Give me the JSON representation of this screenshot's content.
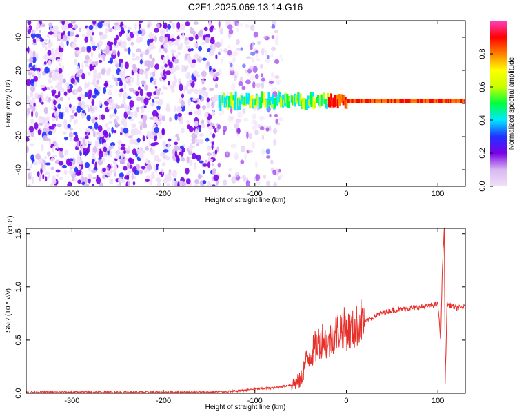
{
  "figure": {
    "title": "C2E1.2025.069.13.14.G16"
  },
  "chart_data": [
    {
      "type": "heatmap",
      "title": "C2E1.2025.069.13.14.G16",
      "xlabel": "Height of straight line (km)",
      "ylabel": "Frequency (Hz)",
      "xlim": [
        -350,
        130
      ],
      "ylim": [
        -50,
        50
      ],
      "x_ticks": [
        -300,
        -200,
        -100,
        0,
        100
      ],
      "y_ticks": [
        -40,
        -20,
        0,
        20,
        40
      ],
      "colorbar": {
        "label": "Normalized spectral amplitude",
        "range": [
          0,
          1
        ],
        "ticks": [
          "0.0",
          "0.2",
          "0.4",
          "0.6",
          "0.8"
        ],
        "colors": [
          "#f0e0f8",
          "#d8b8f0",
          "#7a00e8",
          "#2030ff",
          "#00e8ff",
          "#00ff40",
          "#c8ff00",
          "#ffff00",
          "#ff8000",
          "#ff0000",
          "#ff40c0"
        ]
      },
      "features": {
        "noise_region_x": [
          -350,
          -70
        ],
        "signal_band_x": [
          -140,
          130
        ],
        "signal_center_hz": 1.5
      }
    },
    {
      "type": "line",
      "xlabel": "Height of straight line (km)",
      "ylabel": "SNR (10 * v/v)",
      "y_exponent_label": "(x10⁴)",
      "xlim": [
        -350,
        130
      ],
      "ylim": [
        0,
        1.55
      ],
      "x_ticks": [
        -300,
        -200,
        -100,
        0,
        100
      ],
      "y_ticks": [
        "0.0",
        "0.5",
        "1.0",
        "1.5"
      ],
      "series": [
        {
          "color": "#e8302a",
          "x": [
            -350,
            -300,
            -250,
            -200,
            -150,
            -120,
            -100,
            -80,
            -60,
            -50,
            -45,
            -40,
            -35,
            -30,
            -25,
            -20,
            -15,
            -10,
            -5,
            0,
            5,
            10,
            15,
            20,
            30,
            40,
            50,
            60,
            70,
            80,
            90,
            95,
            100,
            103,
            105,
            107,
            108,
            110,
            115,
            120,
            130
          ],
          "y": [
            0.01,
            0.01,
            0.01,
            0.01,
            0.01,
            0.02,
            0.04,
            0.05,
            0.08,
            0.12,
            0.28,
            0.36,
            0.42,
            0.48,
            0.52,
            0.44,
            0.55,
            0.58,
            0.62,
            0.6,
            0.58,
            0.62,
            0.68,
            0.67,
            0.72,
            0.76,
            0.78,
            0.79,
            0.8,
            0.81,
            0.82,
            0.83,
            0.84,
            0.5,
            1.2,
            1.55,
            0.1,
            0.84,
            0.82,
            0.8,
            0.81
          ]
        }
      ]
    }
  ]
}
